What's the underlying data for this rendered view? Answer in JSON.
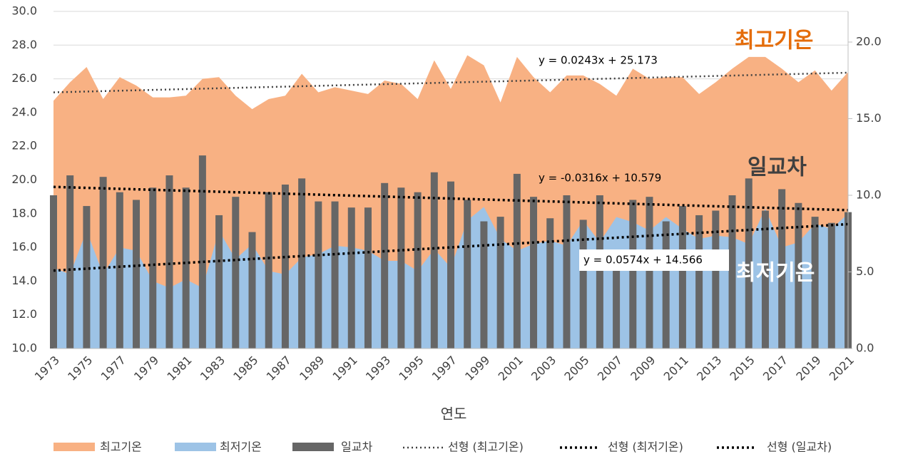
{
  "chart_data": {
    "type": "area-bar",
    "xlabel": "연도",
    "categories": [
      "1973",
      null,
      "1975",
      null,
      "1977",
      null,
      "1979",
      null,
      "1981",
      null,
      "1983",
      null,
      "1985",
      null,
      "1987",
      null,
      "1989",
      null,
      "1991",
      null,
      "1993",
      null,
      "1995",
      null,
      "1997",
      null,
      "1999",
      null,
      "2001",
      null,
      "2003",
      null,
      "2005",
      null,
      "2007",
      null,
      "2009",
      null,
      "2011",
      null,
      "2013",
      null,
      "2015",
      null,
      "2017",
      null,
      "2019",
      null,
      "2021"
    ],
    "series": [
      {
        "name": "최고기온",
        "kind": "area",
        "color": "#f8b183",
        "values": [
          24.7,
          25.8,
          26.7,
          24.8,
          26.1,
          25.6,
          24.9,
          24.9,
          25.0,
          26.0,
          26.1,
          25.0,
          24.2,
          24.8,
          25.0,
          26.3,
          25.2,
          25.5,
          25.3,
          25.1,
          25.9,
          25.7,
          24.8,
          27.1,
          25.4,
          27.4,
          26.8,
          24.6,
          27.3,
          26.1,
          25.2,
          26.2,
          26.2,
          25.7,
          25.0,
          26.6,
          26.0,
          26.1,
          26.1,
          25.1,
          25.8,
          26.6,
          27.3,
          27.3,
          26.6,
          25.8,
          26.5,
          25.3,
          26.4
        ]
      },
      {
        "name": "최저기온",
        "kind": "area",
        "color": "#9dc3e6",
        "values": [
          14.8,
          14.4,
          17.0,
          14.4,
          16.0,
          15.8,
          14.0,
          13.6,
          14.1,
          13.6,
          17.0,
          15.3,
          16.2,
          14.6,
          14.4,
          15.4,
          15.6,
          16.1,
          16.0,
          15.8,
          15.2,
          15.2,
          14.6,
          15.9,
          14.8,
          17.6,
          18.4,
          16.5,
          15.8,
          16.2,
          16.4,
          16.1,
          17.6,
          16.3,
          17.8,
          17.5,
          17.0,
          17.8,
          17.1,
          16.5,
          16.7,
          16.6,
          16.2,
          18.3,
          16.0,
          16.3,
          17.4,
          17.1,
          18.0
        ]
      },
      {
        "name": "일교차",
        "kind": "bar",
        "axis": "y2",
        "color": "#666666",
        "values": [
          10.0,
          11.3,
          9.3,
          11.2,
          10.2,
          9.7,
          10.5,
          11.3,
          10.5,
          12.6,
          8.7,
          9.9,
          7.6,
          10.2,
          10.7,
          11.1,
          9.6,
          9.6,
          9.2,
          9.2,
          10.8,
          10.5,
          10.2,
          11.5,
          10.9,
          9.7,
          8.3,
          8.6,
          11.4,
          9.9,
          8.5,
          10.0,
          8.4,
          10.0,
          6.4,
          9.7,
          9.9,
          8.3,
          9.3,
          8.7,
          9.0,
          10.0,
          11.1,
          9.0,
          10.4,
          9.5,
          8.6,
          8.2,
          8.9
        ]
      }
    ],
    "trendlines": [
      {
        "name": "선형 (최고기온)",
        "slope": 0.0243,
        "intercept": 25.173,
        "label": "y = 0.0243x + 25.173",
        "color": "#404040"
      },
      {
        "name": "선형 (최저기온)",
        "slope": 0.0574,
        "intercept": 14.566,
        "label": "y = 0.0574x + 14.566",
        "color": "#000000"
      },
      {
        "name": "선형 (일교차)",
        "axis": "y2",
        "slope": -0.0316,
        "intercept": 10.579,
        "label": "y = -0.0316x + 10.579",
        "color": "#000000"
      }
    ],
    "annotations": [
      "최고기온",
      "일교차",
      "최저기온"
    ],
    "ylim": [
      10,
      30
    ],
    "yticks": [
      {
        "value": 10,
        "label": "10.0"
      },
      {
        "value": 12,
        "label": "12.0"
      },
      {
        "value": 14,
        "label": "14.0"
      },
      {
        "value": 16,
        "label": "16.0"
      },
      {
        "value": 18,
        "label": "18.0"
      },
      {
        "value": 20,
        "label": "20.0"
      },
      {
        "value": 22,
        "label": "22.0"
      },
      {
        "value": 24,
        "label": "24.0"
      },
      {
        "value": 26,
        "label": "26.0"
      },
      {
        "value": 28,
        "label": "28.0"
      },
      {
        "value": 30,
        "label": "30.0"
      }
    ],
    "y2lim": [
      0,
      22
    ],
    "y2ticks": [
      {
        "value": 0,
        "label": "0.0"
      },
      {
        "value": 5,
        "label": "5.0"
      },
      {
        "value": 10,
        "label": "10.0"
      },
      {
        "value": 15,
        "label": "15.0"
      },
      {
        "value": 20,
        "label": "20.0"
      }
    ],
    "grid": true
  }
}
